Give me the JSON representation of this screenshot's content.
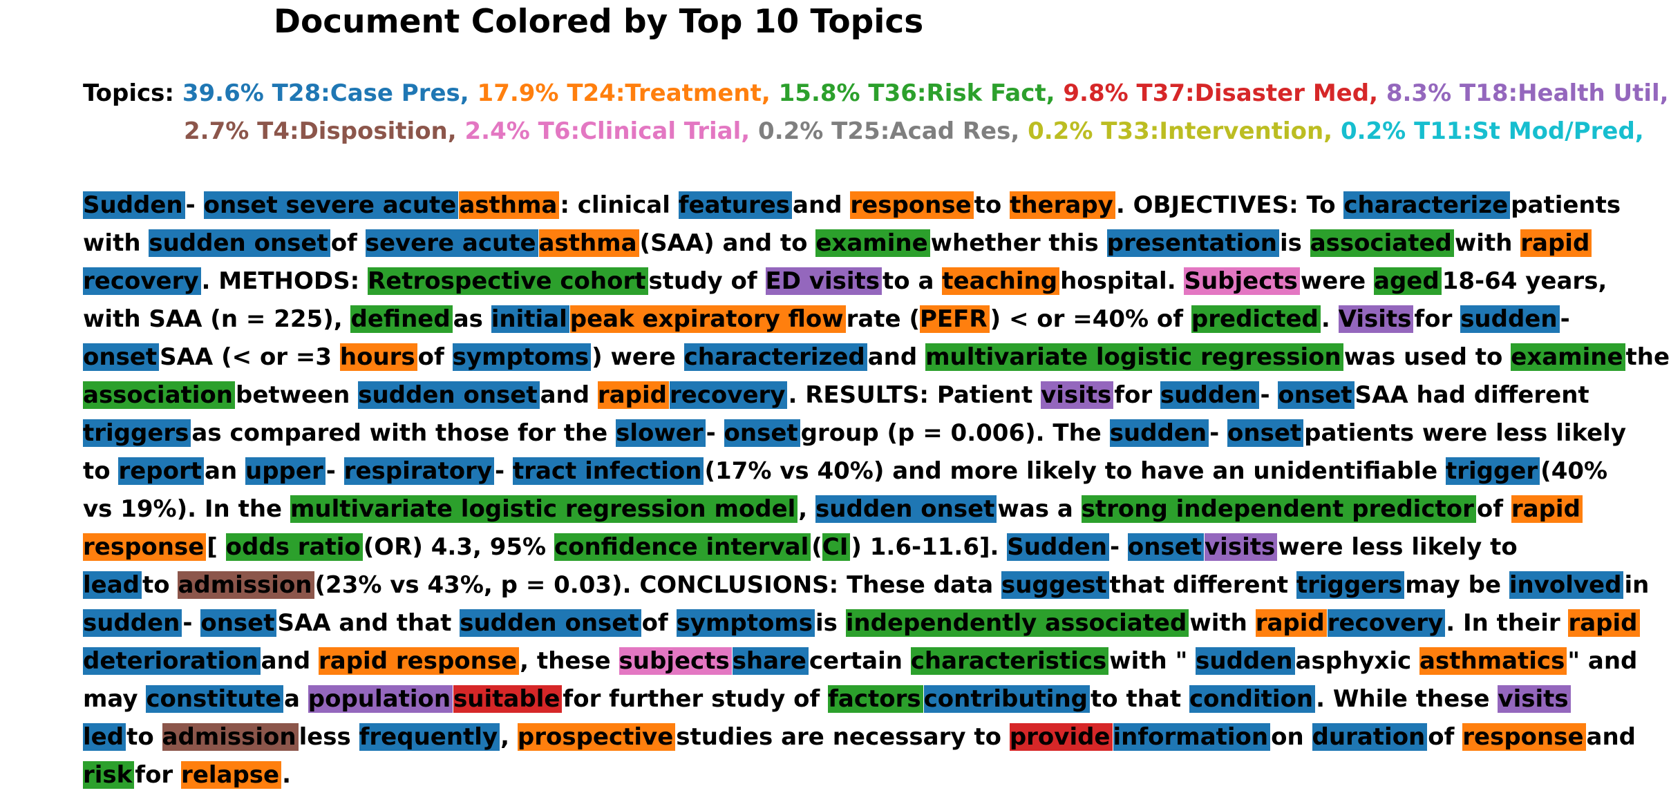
{
  "title": "Document Colored by Top 10 Topics",
  "topics_label": "Topics:",
  "colors": {
    "T28": "#1f77b4",
    "T24": "#ff7f0e",
    "T36": "#2ca02c",
    "T37": "#d62728",
    "T18": "#9467bd",
    "T4": "#8c564b",
    "T6": "#e377c2",
    "T25": "#7f7f7f",
    "T33": "#bcbd22",
    "T11": "#17becf"
  },
  "chart_data": {
    "type": "table",
    "title": "Document Colored by Top 10 Topics",
    "topics": [
      {
        "id": "T28",
        "label": "39.6% T28:Case Pres,",
        "percent": 39.6,
        "name": "Case Pres",
        "color": "#1f77b4"
      },
      {
        "id": "T24",
        "label": "17.9% T24:Treatment,",
        "percent": 17.9,
        "name": "Treatment",
        "color": "#ff7f0e"
      },
      {
        "id": "T36",
        "label": "15.8% T36:Risk Fact,",
        "percent": 15.8,
        "name": "Risk Fact",
        "color": "#2ca02c"
      },
      {
        "id": "T37",
        "label": "9.8% T37:Disaster Med,",
        "percent": 9.8,
        "name": "Disaster Med",
        "color": "#d62728"
      },
      {
        "id": "T18",
        "label": "8.3% T18:Health Util,",
        "percent": 8.3,
        "name": "Health Util",
        "color": "#9467bd"
      },
      {
        "id": "T4",
        "label": "2.7% T4:Disposition,",
        "percent": 2.7,
        "name": "Disposition",
        "color": "#8c564b"
      },
      {
        "id": "T6",
        "label": "2.4% T6:Clinical Trial,",
        "percent": 2.4,
        "name": "Clinical Trial",
        "color": "#e377c2"
      },
      {
        "id": "T25",
        "label": "0.2% T25:Acad Res,",
        "percent": 0.2,
        "name": "Acad Res",
        "color": "#7f7f7f"
      },
      {
        "id": "T33",
        "label": "0.2% T33:Intervention,",
        "percent": 0.2,
        "name": "Intervention",
        "color": "#bcbd22"
      },
      {
        "id": "T11",
        "label": "0.2% T11:St Mod/Pred,",
        "percent": 0.2,
        "name": "St Mod/Pred",
        "color": "#17becf"
      }
    ],
    "lines": [
      [
        [
          "Sudden",
          "T28"
        ],
        [
          "- "
        ],
        [
          "onset severe acute",
          "T28"
        ],
        [
          "asthma",
          "T24"
        ],
        [
          ": clinical "
        ],
        [
          "features",
          "T28"
        ],
        [
          "and "
        ],
        [
          "response",
          "T24"
        ],
        [
          "to "
        ],
        [
          "therapy",
          "T24"
        ],
        [
          ". OBJECTIVES: To "
        ],
        [
          "characterize",
          "T28"
        ],
        [
          "patients"
        ]
      ],
      [
        [
          "with "
        ],
        [
          "sudden onset",
          "T28"
        ],
        [
          "of "
        ],
        [
          "severe acute",
          "T28"
        ],
        [
          "asthma",
          "T24"
        ],
        [
          "(SAA) and to "
        ],
        [
          "examine",
          "T36"
        ],
        [
          "whether this "
        ],
        [
          "presentation",
          "T28"
        ],
        [
          "is "
        ],
        [
          "associated",
          "T36"
        ],
        [
          "with "
        ],
        [
          "rapid",
          "T24"
        ]
      ],
      [
        [
          "recovery",
          "T28"
        ],
        [
          ". METHODS: "
        ],
        [
          "Retrospective cohort",
          "T36"
        ],
        [
          "study of "
        ],
        [
          "ED visits",
          "T18"
        ],
        [
          "to a "
        ],
        [
          "teaching",
          "T24"
        ],
        [
          "hospital. "
        ],
        [
          "Subjects",
          "T6"
        ],
        [
          "were "
        ],
        [
          "aged",
          "T36"
        ],
        [
          "18-64 years,"
        ]
      ],
      [
        [
          "with SAA (n = 225), "
        ],
        [
          "defined",
          "T36"
        ],
        [
          "as "
        ],
        [
          "initial",
          "T28"
        ],
        [
          "peak expiratory flow",
          "T24"
        ],
        [
          "rate ("
        ],
        [
          "PEFR",
          "T24"
        ],
        [
          ") < or =40% of "
        ],
        [
          "predicted",
          "T36"
        ],
        [
          ". "
        ],
        [
          "Visits",
          "T18"
        ],
        [
          "for "
        ],
        [
          "sudden",
          "T28"
        ],
        [
          "-"
        ]
      ],
      [
        [
          "onset",
          "T28"
        ],
        [
          "SAA (< or =3 "
        ],
        [
          "hours",
          "T24"
        ],
        [
          "of "
        ],
        [
          "symptoms",
          "T28"
        ],
        [
          ") were "
        ],
        [
          "characterized",
          "T28"
        ],
        [
          "and "
        ],
        [
          "multivariate logistic regression",
          "T36"
        ],
        [
          "was used to "
        ],
        [
          "examine",
          "T36"
        ],
        [
          "the"
        ]
      ],
      [
        [
          "association",
          "T36"
        ],
        [
          "between "
        ],
        [
          "sudden onset",
          "T28"
        ],
        [
          "and "
        ],
        [
          "rapid",
          "T24"
        ],
        [
          "recovery",
          "T28"
        ],
        [
          ". RESULTS: Patient "
        ],
        [
          "visits",
          "T18"
        ],
        [
          "for "
        ],
        [
          "sudden",
          "T28"
        ],
        [
          "- "
        ],
        [
          "onset",
          "T28"
        ],
        [
          "SAA had different"
        ]
      ],
      [
        [
          "triggers",
          "T28"
        ],
        [
          "as compared with those for the "
        ],
        [
          "slower",
          "T28"
        ],
        [
          "- "
        ],
        [
          "onset",
          "T28"
        ],
        [
          "group (p = 0.006). The "
        ],
        [
          "sudden",
          "T28"
        ],
        [
          "- "
        ],
        [
          "onset",
          "T28"
        ],
        [
          "patients were less likely"
        ]
      ],
      [
        [
          "to "
        ],
        [
          "report",
          "T28"
        ],
        [
          "an "
        ],
        [
          "upper",
          "T28"
        ],
        [
          "- "
        ],
        [
          "respiratory",
          "T28"
        ],
        [
          "- "
        ],
        [
          "tract infection",
          "T28"
        ],
        [
          "(17% vs 40%) and more likely to have an unidentifiable "
        ],
        [
          "trigger",
          "T28"
        ],
        [
          "(40%"
        ]
      ],
      [
        [
          "vs 19%). In the "
        ],
        [
          "multivariate logistic regression model",
          "T36"
        ],
        [
          ", "
        ],
        [
          "sudden onset",
          "T28"
        ],
        [
          "was a "
        ],
        [
          "strong independent predictor",
          "T36"
        ],
        [
          "of "
        ],
        [
          "rapid",
          "T24"
        ]
      ],
      [
        [
          "response",
          "T24"
        ],
        [
          "[ "
        ],
        [
          "odds ratio",
          "T36"
        ],
        [
          "(OR) 4.3, 95% "
        ],
        [
          "confidence interval",
          "T36"
        ],
        [
          "("
        ],
        [
          "CI",
          "T36"
        ],
        [
          ") 1.6-11.6]. "
        ],
        [
          "Sudden",
          "T28"
        ],
        [
          "- "
        ],
        [
          "onset",
          "T28"
        ],
        [
          "visits",
          "T18"
        ],
        [
          "were less likely to"
        ]
      ],
      [
        [
          "lead",
          "T28"
        ],
        [
          "to "
        ],
        [
          "admission",
          "T4"
        ],
        [
          "(23% vs 43%, p = 0.03). CONCLUSIONS: These data "
        ],
        [
          "suggest",
          "T28"
        ],
        [
          "that different "
        ],
        [
          "triggers",
          "T28"
        ],
        [
          "may be "
        ],
        [
          "involved",
          "T28"
        ],
        [
          "in"
        ]
      ],
      [
        [
          "sudden",
          "T28"
        ],
        [
          "- "
        ],
        [
          "onset",
          "T28"
        ],
        [
          "SAA and that "
        ],
        [
          "sudden onset",
          "T28"
        ],
        [
          "of "
        ],
        [
          "symptoms",
          "T28"
        ],
        [
          "is "
        ],
        [
          "independently associated",
          "T36"
        ],
        [
          "with "
        ],
        [
          "rapid",
          "T24"
        ],
        [
          "recovery",
          "T28"
        ],
        [
          ". In their "
        ],
        [
          "rapid",
          "T24"
        ]
      ],
      [
        [
          "deterioration",
          "T28"
        ],
        [
          "and "
        ],
        [
          "rapid response",
          "T24"
        ],
        [
          ", these "
        ],
        [
          "subjects",
          "T6"
        ],
        [
          "share",
          "T28"
        ],
        [
          "certain "
        ],
        [
          "characteristics",
          "T36"
        ],
        [
          "with \" "
        ],
        [
          "sudden",
          "T28"
        ],
        [
          "asphyxic "
        ],
        [
          "asthmatics",
          "T24"
        ],
        [
          "\" and"
        ]
      ],
      [
        [
          "may "
        ],
        [
          "constitute",
          "T28"
        ],
        [
          "a "
        ],
        [
          "population",
          "T18"
        ],
        [
          "suitable",
          "T37"
        ],
        [
          "for further study of "
        ],
        [
          "factors",
          "T36"
        ],
        [
          "contributing",
          "T28"
        ],
        [
          "to that "
        ],
        [
          "condition",
          "T28"
        ],
        [
          ". While these "
        ],
        [
          "visits",
          "T18"
        ]
      ],
      [
        [
          "led",
          "T28"
        ],
        [
          "to "
        ],
        [
          "admission",
          "T4"
        ],
        [
          "less "
        ],
        [
          "frequently",
          "T28"
        ],
        [
          ", "
        ],
        [
          "prospective",
          "T24"
        ],
        [
          "studies are necessary to "
        ],
        [
          "provide",
          "T37"
        ],
        [
          "information",
          "T28"
        ],
        [
          "on "
        ],
        [
          "duration",
          "T28"
        ],
        [
          "of "
        ],
        [
          "response",
          "T24"
        ],
        [
          "and"
        ]
      ],
      [
        [
          "risk",
          "T36"
        ],
        [
          "for "
        ],
        [
          "relapse",
          "T24"
        ],
        [
          "."
        ]
      ]
    ]
  }
}
